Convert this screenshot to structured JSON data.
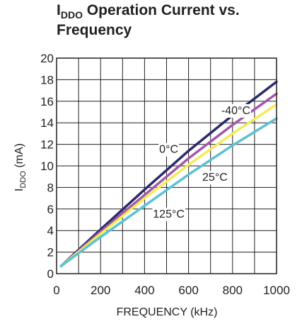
{
  "title": {
    "symbol_main": "I",
    "symbol_sub": "DDO",
    "line1_rest": " Operation Current vs.",
    "line2": "Frequency"
  },
  "colors": {
    "-40C": "#2b2a6b",
    "0C": "#a259a8",
    "25C": "#f2ec57",
    "125C": "#5bc2d1",
    "grid": "#231f20"
  },
  "chart_data": {
    "type": "line",
    "xlabel": "FREQUENCY (kHz)",
    "ylabel": "I_DDO (mA)",
    "xlim": [
      0,
      1000
    ],
    "ylim": [
      0,
      20
    ],
    "xticks": [
      0,
      200,
      400,
      600,
      800,
      1000
    ],
    "yticks": [
      0,
      2,
      4,
      6,
      8,
      10,
      12,
      14,
      16,
      18,
      20
    ],
    "grid": true,
    "series": [
      {
        "name": "-40°C",
        "color": "#2b2a6b",
        "x": [
          20,
          200,
          400,
          600,
          800,
          1000
        ],
        "y": [
          0.7,
          4.1,
          7.8,
          11.4,
          14.7,
          17.8
        ]
      },
      {
        "name": "0°C",
        "color": "#a259a8",
        "x": [
          20,
          200,
          400,
          600,
          800,
          1000
        ],
        "y": [
          0.7,
          3.9,
          7.3,
          10.7,
          13.8,
          16.7
        ]
      },
      {
        "name": "25°C",
        "color": "#f2ec57",
        "x": [
          20,
          200,
          400,
          600,
          800,
          1000
        ],
        "y": [
          0.7,
          3.7,
          7.0,
          10.1,
          13.0,
          15.7
        ]
      },
      {
        "name": "125°C",
        "color": "#5bc2d1",
        "x": [
          20,
          200,
          400,
          600,
          800,
          1000
        ],
        "y": [
          0.7,
          3.4,
          6.3,
          9.2,
          11.9,
          14.4
        ]
      }
    ],
    "annotations": [
      {
        "text": "-40°C",
        "series": "-40°C",
        "x": 815,
        "y": 15.2
      },
      {
        "text": "0°C",
        "series": "0°C",
        "x": 510,
        "y": 11.6
      },
      {
        "text": "25°C",
        "series": "25°C",
        "x": 720,
        "y": 9.0
      },
      {
        "text": "125°C",
        "series": "125°C",
        "x": 510,
        "y": 5.6
      }
    ]
  }
}
